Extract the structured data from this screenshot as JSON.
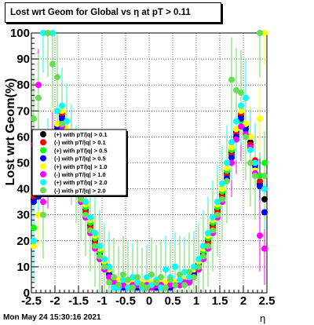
{
  "chart_data": {
    "type": "scatter",
    "title": "Lost wrt Geom for Global vs  η at pT > 0.11",
    "xlabel": "η",
    "ylabel": "Lost wrt Geom(%)",
    "xlim": [
      -2.5,
      2.5
    ],
    "ylim": [
      0,
      100
    ],
    "x_ticks": [
      "-2.5",
      "-2",
      "-1.5",
      "-1",
      "-0.5",
      "0",
      "0.5",
      "1",
      "1.5",
      "2",
      "2.5"
    ],
    "y_ticks": [
      "0",
      "10",
      "20",
      "30",
      "40",
      "50",
      "60",
      "70",
      "80",
      "90",
      "100"
    ],
    "grid": true,
    "legend_position": "left-middle",
    "x": [
      -2.45,
      -2.35,
      -2.25,
      -2.15,
      -2.05,
      -1.95,
      -1.85,
      -1.75,
      -1.65,
      -1.55,
      -1.45,
      -1.35,
      -1.25,
      -1.15,
      -1.05,
      -0.95,
      -0.85,
      -0.75,
      -0.65,
      -0.55,
      -0.45,
      -0.35,
      -0.25,
      -0.15,
      -0.05,
      0.05,
      0.15,
      0.25,
      0.35,
      0.45,
      0.55,
      0.65,
      0.75,
      0.85,
      0.95,
      1.05,
      1.15,
      1.25,
      1.35,
      1.45,
      1.55,
      1.65,
      1.75,
      1.85,
      1.95,
      2.05,
      2.15,
      2.25,
      2.35,
      2.45
    ],
    "series": [
      {
        "name": "(+) with pT/|q| > 0.1",
        "color": "#000000",
        "values": [
          36,
          38,
          42,
          50,
          58,
          64,
          68,
          62,
          54,
          46,
          38,
          32,
          26,
          20,
          15,
          11,
          8,
          5,
          4,
          3,
          3,
          3,
          3,
          3,
          3,
          3,
          3,
          3,
          3,
          3,
          3,
          3,
          4,
          5,
          8,
          11,
          15,
          20,
          26,
          32,
          38,
          46,
          54,
          62,
          68,
          64,
          58,
          50,
          42,
          36
        ]
      },
      {
        "name": "(-) with pT/|q| > 0.1",
        "color": "#ff0000",
        "values": [
          37,
          39,
          43,
          51,
          57,
          65,
          69,
          61,
          53,
          45,
          37,
          31,
          25,
          19,
          14,
          10,
          7,
          5,
          4,
          3,
          3,
          3,
          3,
          2,
          3,
          3,
          2,
          3,
          3,
          3,
          3,
          3,
          4,
          5,
          7,
          10,
          14,
          19,
          25,
          31,
          37,
          45,
          53,
          61,
          69,
          65,
          57,
          51,
          43,
          40
        ]
      },
      {
        "name": "(+) with pT/|q| > 0.5",
        "color": "#00ff00",
        "values": [
          25,
          40,
          45,
          48,
          55,
          62,
          66,
          60,
          55,
          47,
          39,
          33,
          27,
          21,
          16,
          12,
          8,
          6,
          4,
          3,
          3,
          2,
          3,
          4,
          3,
          2,
          3,
          4,
          3,
          2,
          3,
          4,
          5,
          6,
          9,
          12,
          16,
          21,
          27,
          33,
          39,
          47,
          55,
          60,
          66,
          62,
          55,
          48,
          45,
          50
        ]
      },
      {
        "name": "(-) with pT/|q| > 0.5",
        "color": "#0000ff",
        "values": [
          35,
          37,
          41,
          49,
          56,
          63,
          67,
          60,
          52,
          44,
          36,
          30,
          24,
          18,
          13,
          9,
          7,
          4,
          3,
          2,
          3,
          3,
          2,
          3,
          2,
          3,
          2,
          3,
          3,
          2,
          3,
          3,
          4,
          4,
          7,
          9,
          13,
          18,
          24,
          30,
          36,
          44,
          52,
          60,
          67,
          63,
          56,
          49,
          41,
          31
        ]
      },
      {
        "name": "(+) with pT/|q| > 1.0",
        "color": "#ffff00",
        "values": [
          18,
          30,
          42,
          47,
          60,
          65,
          70,
          63,
          56,
          48,
          40,
          34,
          28,
          22,
          17,
          12,
          9,
          6,
          5,
          4,
          4,
          4,
          3,
          4,
          4,
          4,
          3,
          4,
          4,
          4,
          4,
          4,
          5,
          6,
          9,
          12,
          17,
          22,
          28,
          34,
          40,
          48,
          56,
          63,
          70,
          65,
          60,
          47,
          67,
          100
        ]
      },
      {
        "name": "(-) with pT/|q| > 1.0",
        "color": "#ff00ff",
        "values": [
          57,
          80,
          35,
          46,
          56,
          61,
          64,
          59,
          50,
          43,
          35,
          29,
          23,
          17,
          13,
          9,
          6,
          4,
          3,
          3,
          2,
          3,
          3,
          3,
          3,
          2,
          3,
          3,
          2,
          3,
          3,
          3,
          4,
          4,
          6,
          9,
          13,
          17,
          23,
          29,
          35,
          43,
          50,
          59,
          64,
          61,
          56,
          46,
          22,
          17
        ]
      },
      {
        "name": "(+) with pT/|q| > 2.0",
        "color": "#00ffff",
        "values": [
          20,
          45,
          100,
          52,
          100,
          70,
          72,
          66,
          58,
          50,
          42,
          35,
          29,
          23,
          18,
          13,
          10,
          2,
          2,
          5,
          2,
          6,
          4,
          2,
          6,
          3,
          5,
          2,
          9,
          6,
          10,
          5,
          8,
          6,
          10,
          13,
          18,
          23,
          29,
          35,
          42,
          50,
          58,
          66,
          72,
          75,
          55,
          50,
          100,
          40
        ]
      },
      {
        "name": "(-) with pT/|q| > 2.0",
        "color": "#66dd55",
        "values": [
          67,
          75,
          30,
          100,
          88,
          83,
          65,
          58,
          50,
          43,
          36,
          30,
          24,
          18,
          14,
          10,
          4,
          6,
          3,
          7,
          5,
          2,
          6,
          3,
          2,
          7,
          4,
          6,
          2,
          5,
          3,
          7,
          3,
          8,
          6,
          10,
          14,
          18,
          24,
          30,
          36,
          43,
          82,
          78,
          77,
          60,
          50,
          45,
          100,
          45
        ]
      }
    ]
  },
  "footer": {
    "timestamp": "Mon May 24 15:30:16 2021"
  }
}
